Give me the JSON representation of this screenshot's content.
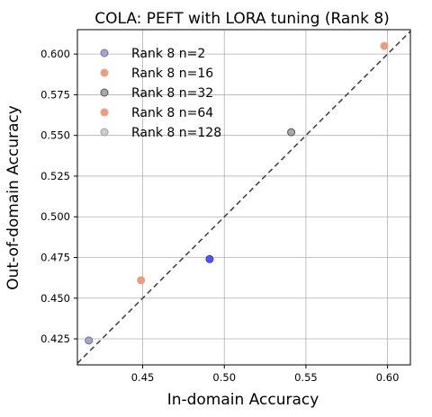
{
  "chart_data": {
    "type": "scatter",
    "title": "COLA: PEFT with LORA tuning (Rank 8)",
    "xlabel": "In-domain Accuracy",
    "ylabel": "Out-of-domain Accuracy",
    "xlim": [
      0.41,
      0.614
    ],
    "ylim": [
      0.409,
      0.615
    ],
    "xticks": [
      0.45,
      0.5,
      0.55,
      0.6
    ],
    "xtick_labels": [
      "0.45",
      "0.50",
      "0.55",
      "0.60"
    ],
    "yticks": [
      0.425,
      0.45,
      0.475,
      0.5,
      0.525,
      0.55,
      0.575,
      0.6
    ],
    "ytick_labels": [
      "0.425",
      "0.450",
      "0.475",
      "0.500",
      "0.525",
      "0.550",
      "0.575",
      "0.600"
    ],
    "grid": true,
    "legend_position": "top-left",
    "diagonal_reference_line": true,
    "series": [
      {
        "name": "Rank 8 n=2",
        "color": "#a6a6c8",
        "edge": "#7070a0",
        "points": [
          {
            "x": 0.417,
            "y": 0.424
          }
        ]
      },
      {
        "name": "Rank 8 n=16",
        "color": "#ec9c80",
        "edge": "#ec9c80",
        "points": [
          {
            "x": 0.449,
            "y": 0.461
          }
        ]
      },
      {
        "name": "Rank 8 n=32",
        "color": "#a9a9a9",
        "edge": "#555555",
        "points": [
          {
            "x": 0.541,
            "y": 0.552
          }
        ]
      },
      {
        "name": "Rank 8 n=64",
        "color": "#ec9c80",
        "edge": "#ec9c80",
        "points": [
          {
            "x": 0.598,
            "y": 0.605
          }
        ]
      },
      {
        "name": "Rank 8 n=128",
        "color": "#cccccc",
        "edge": "#a0a0a0",
        "points": []
      }
    ],
    "extra_points": [
      {
        "x": 0.491,
        "y": 0.474,
        "color": "#5555ee",
        "edge": "#3a3ad8"
      }
    ]
  }
}
